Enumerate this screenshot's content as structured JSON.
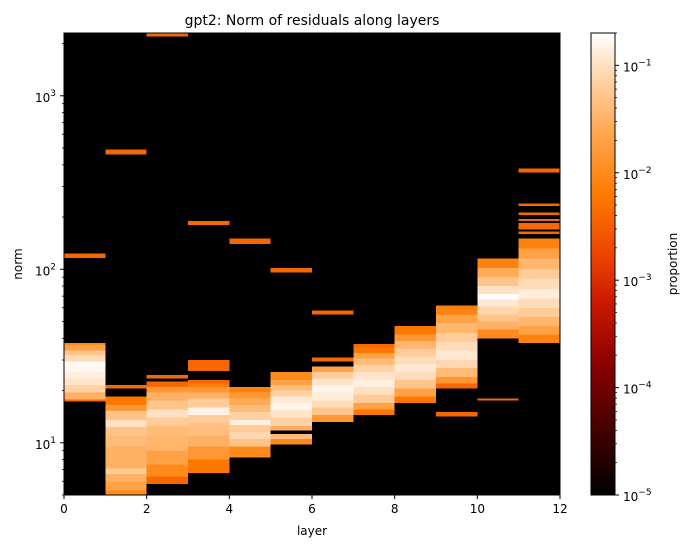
{
  "chart_data": {
    "type": "heatmap",
    "title": "gpt2: Norm of residuals along layers",
    "xlabel": "layer",
    "ylabel": "norm",
    "xlim": [
      0,
      12
    ],
    "ylim": [
      5,
      2300
    ],
    "yscale": "log",
    "x_ticks": [
      "0",
      "2",
      "4",
      "6",
      "8",
      "10",
      "12"
    ],
    "y_ticks": [
      {
        "base": "10",
        "exp": "1",
        "value": 10
      },
      {
        "base": "10",
        "exp": "2",
        "value": 100
      },
      {
        "base": "10",
        "exp": "3",
        "value": 1000
      }
    ],
    "colorbar": {
      "label": "proportion",
      "scale": "log",
      "range": [
        1e-05,
        0.2
      ],
      "colormap": "gist_heat",
      "ticks": [
        {
          "base": "10",
          "exp": "−5",
          "value": 1e-05
        },
        {
          "base": "10",
          "exp": "−4",
          "value": 0.0001
        },
        {
          "base": "10",
          "exp": "−3",
          "value": 0.001
        },
        {
          "base": "10",
          "exp": "−2",
          "value": 0.01
        },
        {
          "base": "10",
          "exp": "−1",
          "value": 0.1
        }
      ]
    },
    "background": "#000000",
    "layers": [
      {
        "layer": 0,
        "bins": [
          [
            17.3,
            17.8,
            0.004
          ],
          [
            17.8,
            19.5,
            0.03
          ],
          [
            19.5,
            21.5,
            0.07
          ],
          [
            21.5,
            23.5,
            0.11
          ],
          [
            23.5,
            25.5,
            0.14
          ],
          [
            25.5,
            27.5,
            0.16
          ],
          [
            27.5,
            29.5,
            0.18
          ],
          [
            29.5,
            32,
            0.09
          ],
          [
            32,
            34,
            0.05
          ],
          [
            34,
            36.5,
            0.02
          ],
          [
            36.5,
            37.5,
            0.01
          ],
          [
            116,
            123,
            0.004
          ]
        ]
      },
      {
        "layer": 1,
        "bins": [
          [
            4.8,
            5.3,
            0.01
          ],
          [
            5.3,
            6,
            0.02
          ],
          [
            6,
            6.6,
            0.03
          ],
          [
            6.6,
            7.1,
            0.06
          ],
          [
            7.1,
            8,
            0.03
          ],
          [
            8,
            9.5,
            0.03
          ],
          [
            9.5,
            11,
            0.04
          ],
          [
            11,
            12.3,
            0.05
          ],
          [
            12.3,
            13.5,
            0.1
          ],
          [
            13.5,
            15.2,
            0.05
          ],
          [
            15.2,
            16.5,
            0.015
          ],
          [
            16.5,
            18.5,
            0.006
          ],
          [
            20.5,
            21.5,
            0.004
          ],
          [
            460,
            490,
            0.004
          ]
        ]
      },
      {
        "layer": 2,
        "bins": [
          [
            5.8,
            6.4,
            0.004
          ],
          [
            6.4,
            7.5,
            0.01
          ],
          [
            7.5,
            9,
            0.02
          ],
          [
            9,
            11,
            0.035
          ],
          [
            11,
            12.5,
            0.04
          ],
          [
            12.5,
            14,
            0.06
          ],
          [
            14,
            15.5,
            0.1
          ],
          [
            15.5,
            17.5,
            0.05
          ],
          [
            17.5,
            19.5,
            0.03
          ],
          [
            19.5,
            21,
            0.015
          ],
          [
            21,
            22.5,
            0.004
          ],
          [
            23.5,
            24.5,
            0.004
          ],
          [
            2200,
            2300,
            0.004
          ]
        ]
      },
      {
        "layer": 3,
        "bins": [
          [
            6.7,
            8,
            0.006
          ],
          [
            8,
            9.5,
            0.015
          ],
          [
            9.5,
            11,
            0.03
          ],
          [
            11,
            13,
            0.045
          ],
          [
            13,
            14.5,
            0.06
          ],
          [
            14.5,
            16,
            0.15
          ],
          [
            16,
            18,
            0.06
          ],
          [
            18,
            19.5,
            0.03
          ],
          [
            19.5,
            21,
            0.015
          ],
          [
            21,
            22,
            0.007
          ],
          [
            22,
            23,
            0.004
          ],
          [
            26,
            30,
            0.004
          ],
          [
            180,
            190,
            0.004
          ]
        ]
      },
      {
        "layer": 4,
        "bins": [
          [
            8.2,
            9.5,
            0.01
          ],
          [
            9.5,
            10.5,
            0.05
          ],
          [
            10.5,
            11.5,
            0.08
          ],
          [
            11.5,
            12.7,
            0.06
          ],
          [
            12.7,
            13.5,
            0.14
          ],
          [
            13.5,
            15,
            0.07
          ],
          [
            15,
            16.5,
            0.04
          ],
          [
            16.5,
            18,
            0.025
          ],
          [
            18,
            19.5,
            0.015
          ],
          [
            19.5,
            21,
            0.008
          ],
          [
            140,
            150,
            0.004
          ]
        ]
      },
      {
        "layer": 5,
        "bins": [
          [
            9.8,
            10.5,
            0.01
          ],
          [
            10.5,
            11.2,
            0.04
          ],
          [
            11.8,
            12.5,
            0.03
          ],
          [
            12.5,
            14,
            0.07
          ],
          [
            14,
            15.5,
            0.11
          ],
          [
            15.5,
            17,
            0.16
          ],
          [
            17,
            18.5,
            0.12
          ],
          [
            18.5,
            20,
            0.07
          ],
          [
            20,
            21.5,
            0.04
          ],
          [
            21.5,
            23,
            0.02
          ],
          [
            23,
            25.5,
            0.01
          ],
          [
            96,
            102,
            0.004
          ]
        ]
      },
      {
        "layer": 6,
        "bins": [
          [
            13.2,
            14.5,
            0.015
          ],
          [
            14.5,
            16,
            0.05
          ],
          [
            16,
            17.5,
            0.09
          ],
          [
            17.5,
            19.5,
            0.13
          ],
          [
            19.5,
            21.5,
            0.16
          ],
          [
            21.5,
            23.5,
            0.11
          ],
          [
            23.5,
            25.5,
            0.06
          ],
          [
            25.5,
            27.5,
            0.02
          ],
          [
            29.5,
            31,
            0.004
          ],
          [
            55,
            58,
            0.004
          ]
        ]
      },
      {
        "layer": 7,
        "bins": [
          [
            14.5,
            15.5,
            0.006
          ],
          [
            15.5,
            17,
            0.02
          ],
          [
            17,
            19,
            0.06
          ],
          [
            19,
            21,
            0.1
          ],
          [
            21,
            23,
            0.14
          ],
          [
            23,
            25.5,
            0.11
          ],
          [
            25.5,
            28,
            0.07
          ],
          [
            28,
            30.5,
            0.04
          ],
          [
            30.5,
            33,
            0.02
          ],
          [
            33,
            35.5,
            0.006
          ],
          [
            35.5,
            37,
            0.004
          ]
        ]
      },
      {
        "layer": 8,
        "bins": [
          [
            17,
            18.5,
            0.006
          ],
          [
            18.5,
            20.5,
            0.02
          ],
          [
            20.5,
            23,
            0.05
          ],
          [
            23,
            25.5,
            0.09
          ],
          [
            25.5,
            28.5,
            0.12
          ],
          [
            28.5,
            31.5,
            0.09
          ],
          [
            31.5,
            35,
            0.06
          ],
          [
            35,
            38.5,
            0.035
          ],
          [
            38.5,
            42,
            0.015
          ],
          [
            42,
            47,
            0.006
          ]
        ]
      },
      {
        "layer": 9,
        "bins": [
          [
            14.2,
            15,
            0.004
          ],
          [
            20.5,
            22,
            0.004
          ],
          [
            22,
            24,
            0.015
          ],
          [
            24,
            27,
            0.04
          ],
          [
            27,
            30,
            0.08
          ],
          [
            30,
            34,
            0.12
          ],
          [
            34,
            38,
            0.09
          ],
          [
            38,
            43,
            0.06
          ],
          [
            43,
            49,
            0.035
          ],
          [
            49,
            55,
            0.02
          ],
          [
            55,
            62,
            0.008
          ]
        ]
      },
      {
        "layer": 10,
        "bins": [
          [
            17.5,
            18,
            0.004
          ],
          [
            40,
            45,
            0.01
          ],
          [
            45,
            50,
            0.03
          ],
          [
            50,
            55,
            0.05
          ],
          [
            55,
            61,
            0.08
          ],
          [
            61,
            67,
            0.12
          ],
          [
            67,
            72,
            0.19
          ],
          [
            72,
            80,
            0.1
          ],
          [
            80,
            90,
            0.05
          ],
          [
            90,
            102,
            0.025
          ],
          [
            102,
            115,
            0.008
          ]
        ]
      },
      {
        "layer": 11,
        "bins": [
          [
            37.5,
            42,
            0.008
          ],
          [
            42,
            47,
            0.02
          ],
          [
            47,
            53,
            0.035
          ],
          [
            53,
            60,
            0.06
          ],
          [
            60,
            68,
            0.09
          ],
          [
            68,
            77,
            0.13
          ],
          [
            77,
            88,
            0.09
          ],
          [
            88,
            100,
            0.06
          ],
          [
            100,
            115,
            0.035
          ],
          [
            115,
            132,
            0.02
          ],
          [
            132,
            150,
            0.008
          ],
          [
            160,
            165,
            0.004
          ],
          [
            170,
            185,
            0.004
          ],
          [
            190,
            195,
            0.004
          ],
          [
            205,
            212,
            0.004
          ],
          [
            232,
            240,
            0.004
          ],
          [
            360,
            380,
            0.004
          ]
        ]
      }
    ]
  }
}
